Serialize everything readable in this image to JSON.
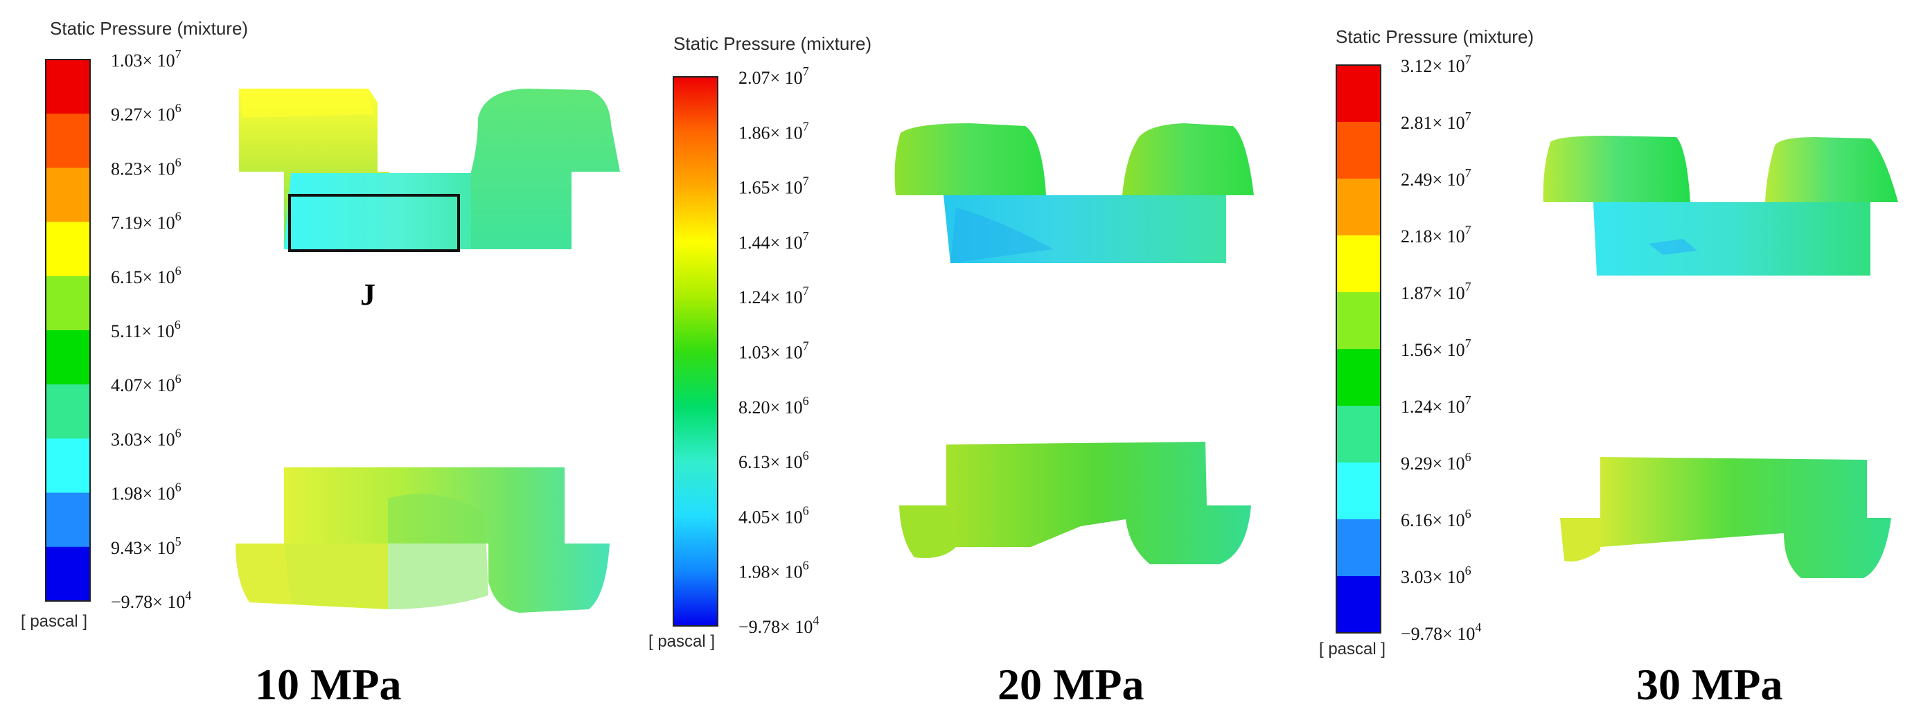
{
  "panels": [
    {
      "id": "p10",
      "legend_title": "Static Pressure (mixture)",
      "unit_label": "[ pascal ]",
      "ticks": [
        {
          "m": "1.03",
          "e": "7"
        },
        {
          "m": "9.27",
          "e": "6"
        },
        {
          "m": "8.23",
          "e": "6"
        },
        {
          "m": "7.19",
          "e": "6"
        },
        {
          "m": "6.15",
          "e": "6"
        },
        {
          "m": "5.11",
          "e": "6"
        },
        {
          "m": "4.07",
          "e": "6"
        },
        {
          "m": "3.03",
          "e": "6"
        },
        {
          "m": "1.98",
          "e": "6"
        },
        {
          "m": "9.43",
          "e": "5"
        },
        {
          "m": "−9.78",
          "e": "4"
        }
      ],
      "colorbar": [
        "#ee0000",
        "#ff5500",
        "#ff9f00",
        "#ffff00",
        "#88ee22",
        "#00dd00",
        "#33e88f",
        "#33ffff",
        "#1f8bff",
        "#0000ee"
      ],
      "colorbar_style": "banded",
      "annotation": "J",
      "caption": "10 MPa"
    },
    {
      "id": "p20",
      "legend_title": "Static Pressure (mixture)",
      "unit_label": "[ pascal ]",
      "ticks": [
        {
          "m": "2.07",
          "e": "7"
        },
        {
          "m": "1.86",
          "e": "7"
        },
        {
          "m": "1.65",
          "e": "7"
        },
        {
          "m": "1.44",
          "e": "7"
        },
        {
          "m": "1.24",
          "e": "7"
        },
        {
          "m": "1.03",
          "e": "7"
        },
        {
          "m": "8.20",
          "e": "6"
        },
        {
          "m": "6.13",
          "e": "6"
        },
        {
          "m": "4.05",
          "e": "6"
        },
        {
          "m": "1.98",
          "e": "6"
        },
        {
          "m": "−9.78",
          "e": "4"
        }
      ],
      "colorbar": [
        "#ee0000",
        "#ff6600",
        "#ffaa00",
        "#ffff00",
        "#aaee00",
        "#33dd11",
        "#00dd66",
        "#33eecc",
        "#22ddff",
        "#1188ff",
        "#0000ee"
      ],
      "colorbar_style": "smooth",
      "caption": "20 MPa"
    },
    {
      "id": "p30",
      "legend_title": "Static Pressure (mixture)",
      "unit_label": "[ pascal ]",
      "ticks": [
        {
          "m": "3.12",
          "e": "7"
        },
        {
          "m": "2.81",
          "e": "7"
        },
        {
          "m": "2.49",
          "e": "7"
        },
        {
          "m": "2.18",
          "e": "7"
        },
        {
          "m": "1.87",
          "e": "7"
        },
        {
          "m": "1.56",
          "e": "7"
        },
        {
          "m": "1.24",
          "e": "7"
        },
        {
          "m": "9.29",
          "e": "6"
        },
        {
          "m": "6.16",
          "e": "6"
        },
        {
          "m": "3.03",
          "e": "6"
        },
        {
          "m": "−9.78",
          "e": "4"
        }
      ],
      "colorbar": [
        "#ee0000",
        "#ff5500",
        "#ff9f00",
        "#ffff00",
        "#88ee22",
        "#00dd00",
        "#33e88f",
        "#33ffff",
        "#1f8bff",
        "#0000ee"
      ],
      "colorbar_style": "banded",
      "caption": "30 MPa"
    }
  ]
}
